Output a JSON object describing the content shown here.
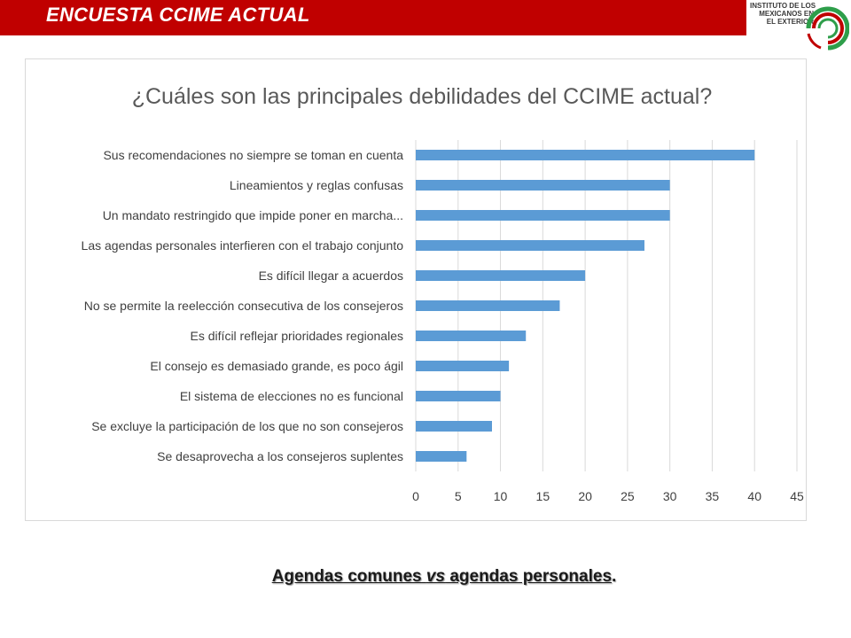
{
  "header": {
    "title": "ENCUESTA CCIME ACTUAL",
    "bar_color": "#c00000"
  },
  "logo": {
    "line1": "INSTITUTO DE LOS",
    "line2": "MEXICANOS EN",
    "line3": "EL EXTERIOR",
    "colors": [
      "#c00000",
      "#2e9e4a"
    ]
  },
  "chart_data": {
    "type": "bar",
    "orientation": "horizontal",
    "title": "¿Cuáles son las principales debilidades del CCIME actual?",
    "categories": [
      "Sus recomendaciones no siempre se toman en cuenta",
      "Lineamientos y reglas confusas",
      "Un mandato restringido que impide poner en marcha...",
      "Las agendas personales interfieren con el trabajo conjunto",
      "Es difícil llegar a acuerdos",
      "No se permite la reelección consecutiva de los consejeros",
      "Es difícil reflejar prioridades regionales",
      "El consejo es demasiado grande, es poco ágil",
      "El sistema de elecciones no es funcional",
      "Se excluye la participación de los que no son consejeros",
      "Se desaprovecha a los consejeros suplentes"
    ],
    "values": [
      40,
      30,
      30,
      27,
      20,
      17,
      13,
      11,
      10,
      9,
      6
    ],
    "xlim": [
      0,
      45
    ],
    "xticks": [
      0,
      5,
      10,
      15,
      20,
      25,
      30,
      35,
      40,
      45
    ],
    "grid": true,
    "bar_color": "#5b9bd5"
  },
  "footer": {
    "before": "Agendas comunes ",
    "italic": "vs",
    "after": " agendas personales",
    "period": "."
  }
}
